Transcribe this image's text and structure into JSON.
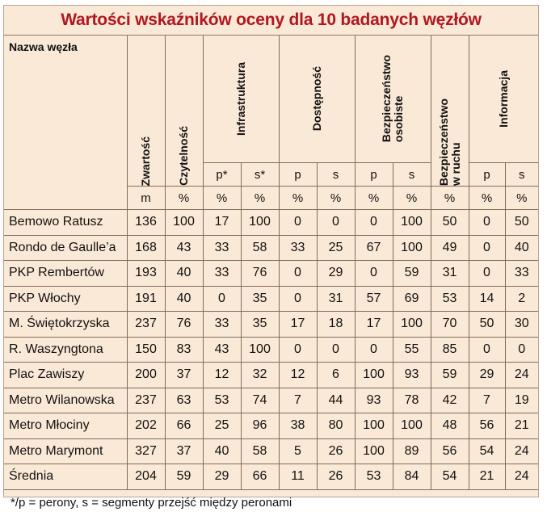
{
  "title": "Wartości wskaźników oceny dla 10 badanych węzłów",
  "headers": {
    "name": "Nazwa węzła",
    "zwartosc": "Zwartość",
    "czytelnosc": "Czytelność",
    "infrastruktura": "Infrastruktura",
    "dostepnosc": "Dostępność",
    "bezp_osobiste": "Bezpieczeństwo\nosobiste",
    "bezp_ruchu": "Bezpieczeństwo\nw ruchu",
    "informacja": "Informacja"
  },
  "subheaders": {
    "infra_p": "p*",
    "infra_s": "s*",
    "dost_p": "p",
    "dost_s": "s",
    "bos_p": "p",
    "bos_s": "s",
    "inf_p": "p",
    "inf_s": "s"
  },
  "units": [
    "m",
    "%",
    "%",
    "%",
    "%",
    "%",
    "%",
    "%",
    "%",
    "%",
    "%"
  ],
  "rows": [
    {
      "name": "Bemowo Ratusz",
      "values": [
        "136",
        "100",
        "17",
        "100",
        "0",
        "0",
        "0",
        "100",
        "50",
        "0",
        "50"
      ]
    },
    {
      "name": "Rondo de Gaulle’a",
      "values": [
        "168",
        "43",
        "33",
        "58",
        "33",
        "25",
        "67",
        "100",
        "49",
        "0",
        "40"
      ]
    },
    {
      "name": "PKP Rembertów",
      "values": [
        "193",
        "40",
        "33",
        "76",
        "0",
        "29",
        "0",
        "59",
        "31",
        "0",
        "33"
      ]
    },
    {
      "name": "PKP Włochy",
      "values": [
        "191",
        "40",
        "0",
        "35",
        "0",
        "31",
        "57",
        "69",
        "53",
        "14",
        "2"
      ]
    },
    {
      "name": "M. Świętokrzyska",
      "values": [
        "237",
        "76",
        "33",
        "35",
        "17",
        "18",
        "17",
        "100",
        "70",
        "50",
        "30"
      ]
    },
    {
      "name": "R. Waszyngtona",
      "values": [
        "150",
        "83",
        "43",
        "100",
        "0",
        "0",
        "0",
        "55",
        "85",
        "0",
        "0"
      ]
    },
    {
      "name": "Plac Zawiszy",
      "values": [
        "200",
        "37",
        "12",
        "32",
        "12",
        "6",
        "100",
        "93",
        "59",
        "29",
        "24"
      ]
    },
    {
      "name": "Metro Wilanowska",
      "values": [
        "237",
        "63",
        "53",
        "74",
        "7",
        "44",
        "93",
        "78",
        "42",
        "7",
        "19"
      ]
    },
    {
      "name": "Metro Młociny",
      "values": [
        "202",
        "66",
        "25",
        "96",
        "38",
        "80",
        "100",
        "100",
        "48",
        "56",
        "21"
      ]
    },
    {
      "name": "Metro Marymont",
      "values": [
        "327",
        "37",
        "40",
        "58",
        "5",
        "26",
        "100",
        "89",
        "56",
        "54",
        "24"
      ]
    },
    {
      "name": "Średnia",
      "values": [
        "204",
        "59",
        "29",
        "66",
        "11",
        "26",
        "53",
        "84",
        "54",
        "21",
        "24"
      ]
    }
  ],
  "footnote": "*/p = perony, s = segmenty przejść między peronami",
  "colors": {
    "background": "#fbe9d7",
    "title": "#b0171f",
    "border": "#7d6d5d"
  }
}
